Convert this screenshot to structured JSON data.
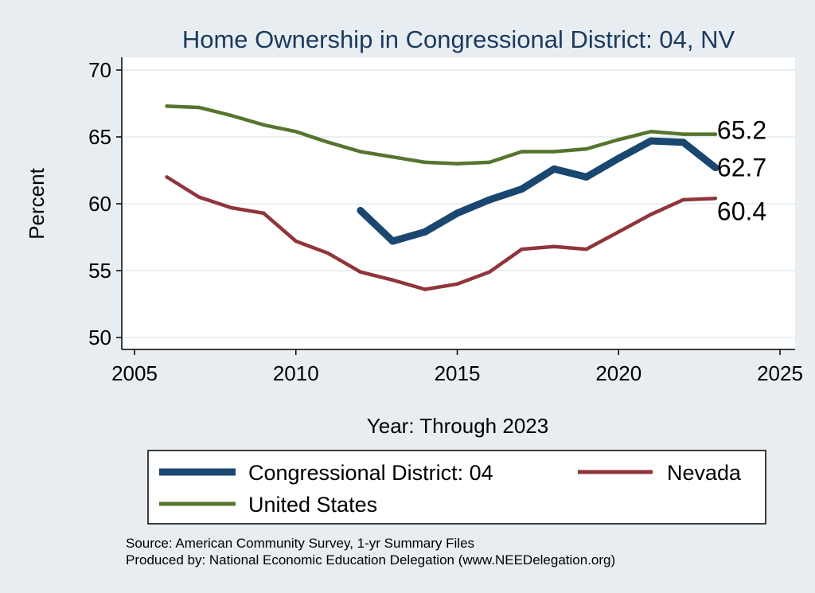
{
  "chart_data": {
    "type": "line",
    "title": "Home Ownership in Congressional District:  04, NV",
    "xlabel": "Year: Through 2023",
    "ylabel": "Percent",
    "xlim": [
      2005,
      2025
    ],
    "ylim": [
      50,
      70
    ],
    "xticks": [
      2005,
      2010,
      2015,
      2020,
      2025
    ],
    "yticks": [
      50,
      55,
      60,
      65,
      70
    ],
    "grid": true,
    "series": [
      {
        "name": "Congressional District:  04",
        "color": "#1a476f",
        "x": [
          2012,
          2013,
          2014,
          2015,
          2016,
          2017,
          2018,
          2019,
          2020,
          2021,
          2022,
          2023
        ],
        "values": [
          59.5,
          57.2,
          57.9,
          59.3,
          60.3,
          61.1,
          62.6,
          62.0,
          63.4,
          64.7,
          64.6,
          62.7
        ],
        "end_label": "62.7"
      },
      {
        "name": "Nevada",
        "color": "#90353b",
        "x": [
          2006,
          2007,
          2008,
          2009,
          2010,
          2011,
          2012,
          2013,
          2014,
          2015,
          2016,
          2017,
          2018,
          2019,
          2020,
          2021,
          2022,
          2023
        ],
        "values": [
          62.0,
          60.5,
          59.7,
          59.3,
          57.2,
          56.3,
          54.9,
          54.3,
          53.6,
          54.0,
          54.9,
          56.6,
          56.8,
          56.6,
          57.9,
          59.2,
          60.3,
          60.4
        ],
        "end_label": "60.4"
      },
      {
        "name": "United States",
        "color": "#55752f",
        "x": [
          2006,
          2007,
          2008,
          2009,
          2010,
          2011,
          2012,
          2013,
          2014,
          2015,
          2016,
          2017,
          2018,
          2019,
          2020,
          2021,
          2022,
          2023
        ],
        "values": [
          67.3,
          67.2,
          66.6,
          65.9,
          65.4,
          64.6,
          63.9,
          63.5,
          63.1,
          63.0,
          63.1,
          63.9,
          63.9,
          64.1,
          64.8,
          65.4,
          65.2,
          65.2
        ],
        "end_label": "65.2"
      }
    ],
    "legend": [
      "Congressional District:  04",
      "Nevada",
      "United States"
    ],
    "source": "Source: American Community Survey, 1-yr Summary Files",
    "produced_by": "Produced by: National Economic Education Delegation (www.NEEDelegation.org)"
  }
}
